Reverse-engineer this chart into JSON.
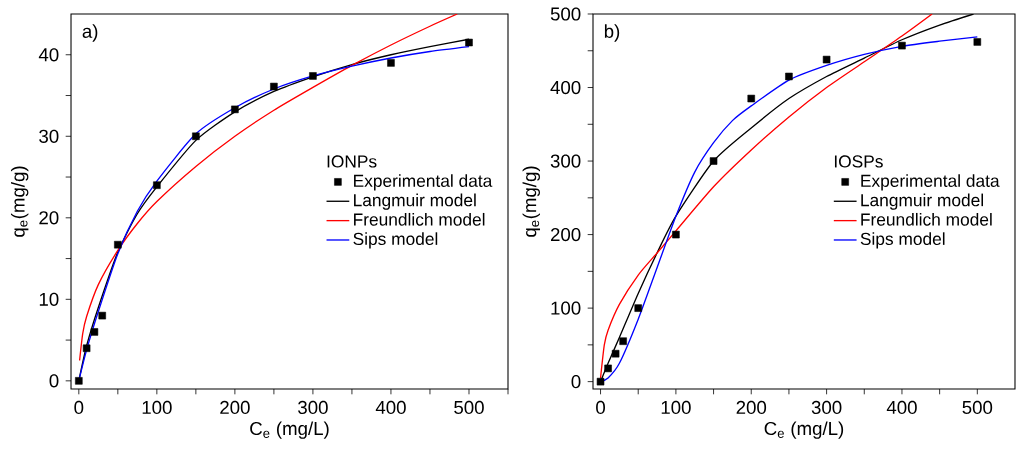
{
  "chart_data": [
    {
      "type": "line",
      "annotations": [
        "a)"
      ],
      "xlabel": "C$_{e}$ (mg/L)",
      "ylabel": "q$_{e}$(mg/g)",
      "legend_title": "IONPs",
      "legend": "right",
      "xlim": [
        -10,
        550
      ],
      "ylim": [
        -1,
        45
      ],
      "xticks": [
        0,
        {
          "value": 50,
          "label": null
        },
        100,
        {
          "value": 150,
          "label": null
        },
        200,
        {
          "value": 250,
          "label": null
        },
        300,
        {
          "value": 350,
          "label": null
        },
        400,
        {
          "value": 450,
          "label": null
        },
        500,
        {
          "value": 550,
          "label": null
        }
      ],
      "yticks": [
        0,
        {
          "value": 5,
          "label": null
        },
        10,
        {
          "value": 15,
          "label": null
        },
        20,
        {
          "value": 25,
          "label": null
        },
        30,
        {
          "value": 35,
          "label": null
        },
        40
      ],
      "series": [
        {
          "type": "scatter",
          "name": "Experimental data",
          "color": "#000000",
          "marker": "square",
          "x": [
            0,
            10,
            20,
            30,
            50,
            100,
            150,
            200,
            250,
            300,
            400,
            500
          ],
          "values": [
            0,
            4,
            6,
            8,
            16.7,
            24,
            30,
            33.3,
            36.1,
            37.4,
            39,
            41.5
          ]
        },
        {
          "name": "Langmuir model",
          "color": "#000000",
          "x": [
            0,
            10,
            25,
            50,
            75,
            100,
            150,
            200,
            250,
            300,
            350,
            400,
            450,
            500
          ],
          "values": [
            0,
            4.3,
            9,
            15.8,
            20.5,
            23.8,
            29.5,
            33,
            35.5,
            37.3,
            38.8,
            40,
            41,
            41.9
          ]
        },
        {
          "name": "Freundlich model",
          "color": "#ff0000",
          "x": [
            1,
            5,
            10,
            25,
            50,
            75,
            100,
            150,
            200,
            250,
            300,
            350,
            400,
            450,
            485
          ],
          "values": [
            2.5,
            5.8,
            7.9,
            11.8,
            16,
            19.3,
            22,
            26.3,
            30,
            33.2,
            36,
            38.7,
            41.2,
            43.5,
            45
          ]
        },
        {
          "name": "Sips model",
          "color": "#0000ff",
          "x": [
            0,
            10,
            25,
            50,
            75,
            100,
            150,
            200,
            250,
            300,
            350,
            400,
            450,
            500
          ],
          "values": [
            0,
            3.8,
            8.5,
            15.6,
            20.8,
            24.5,
            30.3,
            33.5,
            35.8,
            37.4,
            38.6,
            39.6,
            40.4,
            41
          ]
        }
      ]
    },
    {
      "type": "line",
      "annotations": [
        "b)"
      ],
      "xlabel": "C$_{e}$ (mg/L)",
      "ylabel": "q$_{e}$(mg/g)",
      "legend_title": "IOSPs",
      "legend": "right",
      "xlim": [
        -10,
        550
      ],
      "ylim": [
        -10,
        500
      ],
      "xticks": [
        0,
        {
          "value": 50,
          "label": null
        },
        100,
        {
          "value": 150,
          "label": null
        },
        200,
        {
          "value": 250,
          "label": null
        },
        300,
        {
          "value": 350,
          "label": null
        },
        400,
        {
          "value": 450,
          "label": null
        },
        500
      ],
      "yticks": [
        0,
        {
          "value": 50,
          "label": null
        },
        100,
        {
          "value": 150,
          "label": null
        },
        200,
        {
          "value": 250,
          "label": null
        },
        300,
        {
          "value": 350,
          "label": null
        },
        400,
        {
          "value": 450,
          "label": null
        },
        500
      ],
      "series": [
        {
          "type": "scatter",
          "name": "Experimental data",
          "color": "#000000",
          "marker": "square",
          "x": [
            0,
            10,
            20,
            30,
            50,
            100,
            150,
            200,
            250,
            300,
            400,
            500
          ],
          "values": [
            0,
            18,
            38,
            55,
            100,
            200,
            300,
            385,
            415,
            438,
            457,
            462
          ]
        },
        {
          "name": "Langmuir model",
          "color": "#000000",
          "x": [
            0,
            10,
            25,
            50,
            75,
            100,
            150,
            200,
            250,
            300,
            350,
            400,
            450,
            495
          ],
          "values": [
            0,
            25,
            60,
            120,
            175,
            225,
            300,
            345,
            385,
            415,
            440,
            465,
            485,
            500
          ]
        },
        {
          "name": "Freundlich model",
          "color": "#ff0000",
          "x": [
            0,
            5,
            10,
            25,
            50,
            75,
            100,
            150,
            200,
            250,
            300,
            350,
            400,
            440
          ],
          "values": [
            5,
            50,
            70,
            105,
            145,
            175,
            205,
            265,
            315,
            360,
            400,
            435,
            470,
            500
          ]
        },
        {
          "name": "Sips model",
          "color": "#0000ff",
          "x": [
            0,
            10,
            25,
            50,
            75,
            100,
            125,
            150,
            175,
            200,
            250,
            300,
            350,
            400,
            450,
            500
          ],
          "values": [
            0,
            5,
            25,
            85,
            155,
            225,
            285,
            325,
            355,
            375,
            410,
            430,
            445,
            456,
            463,
            469
          ]
        }
      ]
    }
  ]
}
